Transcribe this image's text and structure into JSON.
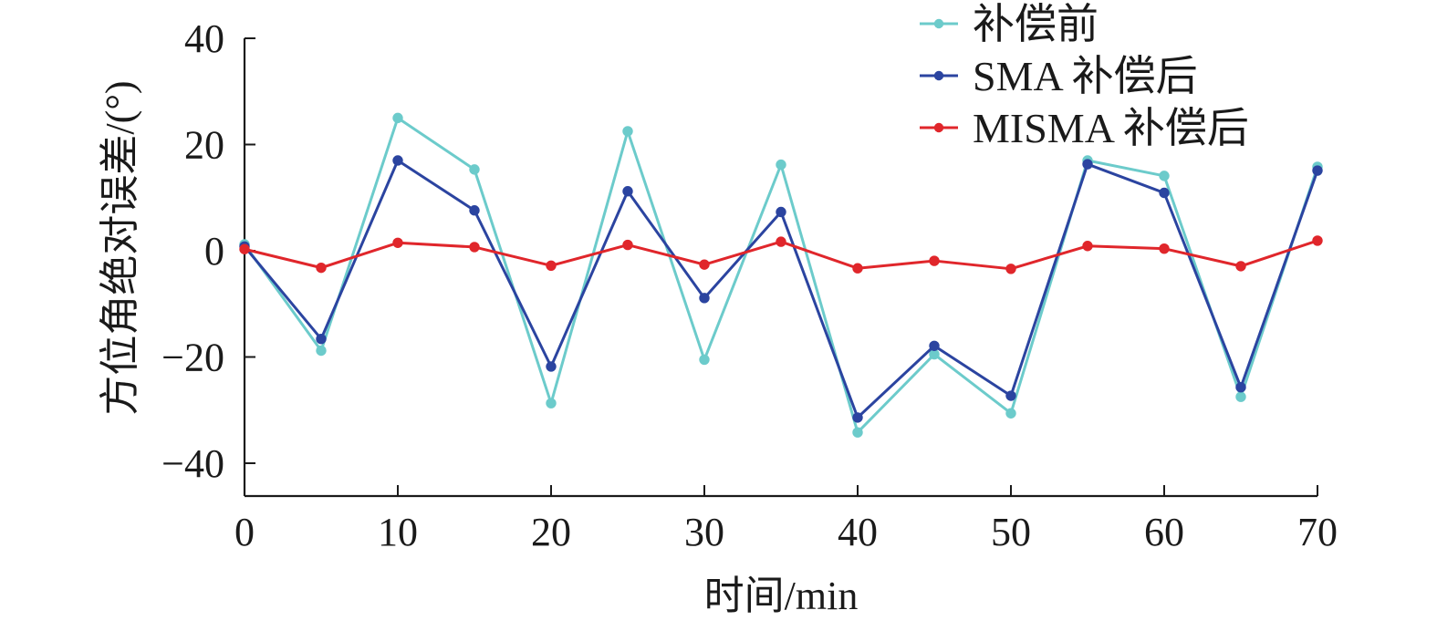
{
  "chart_data": {
    "type": "line",
    "title": "",
    "xlabel": "时间/min",
    "ylabel": "方位角绝对误差/(°)",
    "xlim": [
      0,
      70
    ],
    "ylim": [
      -45,
      40
    ],
    "xticks": [
      0,
      10,
      20,
      30,
      40,
      50,
      60,
      70
    ],
    "yticks": [
      -40,
      -20,
      0,
      20,
      40
    ],
    "xtick_labels": [
      "0",
      "10",
      "20",
      "30",
      "40",
      "50",
      "60",
      "70"
    ],
    "ytick_labels": [
      "−40",
      "−20",
      "0",
      "20",
      "40"
    ],
    "x": [
      0,
      5,
      10,
      15,
      20,
      25,
      30,
      35,
      40,
      45,
      50,
      55,
      60,
      65,
      70
    ],
    "legend_position": "top-right",
    "series": [
      {
        "name": "补偿前",
        "color": "#6ccbcb",
        "values": [
          1.2,
          -18.8,
          25.0,
          15.3,
          -28.7,
          22.5,
          -20.5,
          16.2,
          -34.2,
          -19.5,
          -30.6,
          17.0,
          14.1,
          -27.5,
          15.8
        ]
      },
      {
        "name": "SMA 补偿后",
        "color": "#2b44a0",
        "values": [
          0.8,
          -16.6,
          17.0,
          7.6,
          -21.8,
          11.2,
          -8.9,
          7.3,
          -31.4,
          -17.9,
          -27.3,
          16.3,
          10.9,
          -25.7,
          15.1
        ]
      },
      {
        "name": "MISMA 补偿后",
        "color": "#e0262b",
        "values": [
          0.3,
          -3.2,
          1.5,
          0.7,
          -2.8,
          1.1,
          -2.6,
          1.7,
          -3.3,
          -1.9,
          -3.4,
          0.9,
          0.4,
          -2.9,
          1.9
        ]
      }
    ]
  }
}
